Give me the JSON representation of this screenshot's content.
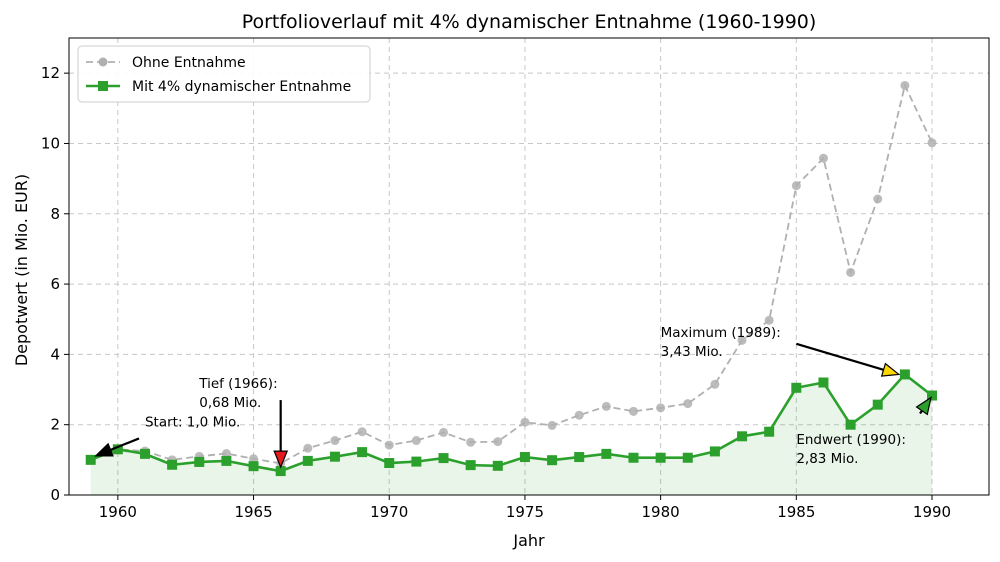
{
  "chart_data": {
    "type": "line",
    "title": "Portfolioverlauf mit 4% dynamischer Entnahme (1960-1990)",
    "xlabel": "Jahr",
    "ylabel": "Depotwert (in Mio. EUR)",
    "xlim": [
      1958.2,
      1992.1
    ],
    "ylim": [
      0,
      13
    ],
    "xticks": [
      1960,
      1965,
      1970,
      1975,
      1980,
      1985,
      1990
    ],
    "yticks": [
      0,
      2,
      4,
      6,
      8,
      10,
      12
    ],
    "grid": true,
    "legend_position": "top-left",
    "x": [
      1959,
      1960,
      1961,
      1962,
      1963,
      1964,
      1965,
      1966,
      1967,
      1968,
      1969,
      1970,
      1971,
      1972,
      1973,
      1974,
      1975,
      1976,
      1977,
      1978,
      1979,
      1980,
      1981,
      1982,
      1983,
      1984,
      1985,
      1986,
      1987,
      1988,
      1989,
      1990
    ],
    "series": [
      {
        "name": "Ohne Entnahme",
        "color": "#b0b0b0",
        "style": "dashed",
        "marker": "circle",
        "values": [
          1.0,
          1.3,
          1.25,
          1.0,
          1.1,
          1.18,
          1.03,
          0.9,
          1.33,
          1.55,
          1.8,
          1.42,
          1.55,
          1.78,
          1.5,
          1.52,
          2.07,
          1.98,
          2.27,
          2.52,
          2.38,
          2.48,
          2.6,
          3.15,
          4.4,
          4.97,
          8.8,
          9.58,
          6.33,
          8.42,
          11.65,
          10.02
        ]
      },
      {
        "name": "Mit 4% dynamischer Entnahme",
        "color": "#2ca02c",
        "style": "solid",
        "marker": "square",
        "values": [
          1.0,
          1.3,
          1.17,
          0.86,
          0.94,
          0.97,
          0.82,
          0.68,
          0.97,
          1.09,
          1.22,
          0.91,
          0.95,
          1.05,
          0.85,
          0.83,
          1.08,
          0.99,
          1.08,
          1.17,
          1.06,
          1.06,
          1.06,
          1.24,
          1.67,
          1.8,
          3.05,
          3.2,
          2.0,
          2.57,
          3.43,
          2.83
        ]
      }
    ],
    "annotations": [
      {
        "id": "start",
        "lines": [
          "Start: 1,0 Mio."
        ],
        "text_at": [
          1961,
          1.95
        ],
        "point": [
          1959,
          1.0
        ],
        "arrow_color": "#000000"
      },
      {
        "id": "tief",
        "lines": [
          "Tief (1966):",
          "0,68 Mio."
        ],
        "text_at": [
          1963,
          3.05
        ],
        "point": [
          1966,
          0.68
        ],
        "arrow_from": [
          1966,
          2.7
        ],
        "arrow_color": "#e41a1c"
      },
      {
        "id": "maximum",
        "lines": [
          "Maximum (1989):",
          "3,43 Mio."
        ],
        "text_at": [
          1980,
          4.5
        ],
        "point": [
          1989,
          3.43
        ],
        "arrow_from": [
          1985,
          4.3
        ],
        "arrow_color": "#ffd700"
      },
      {
        "id": "endwert",
        "lines": [
          "Endwert (1990):",
          "2,83 Mio."
        ],
        "text_at": [
          1985,
          1.45
        ],
        "point": [
          1990,
          2.83
        ],
        "arrow_color": "#2ca02c"
      }
    ]
  }
}
